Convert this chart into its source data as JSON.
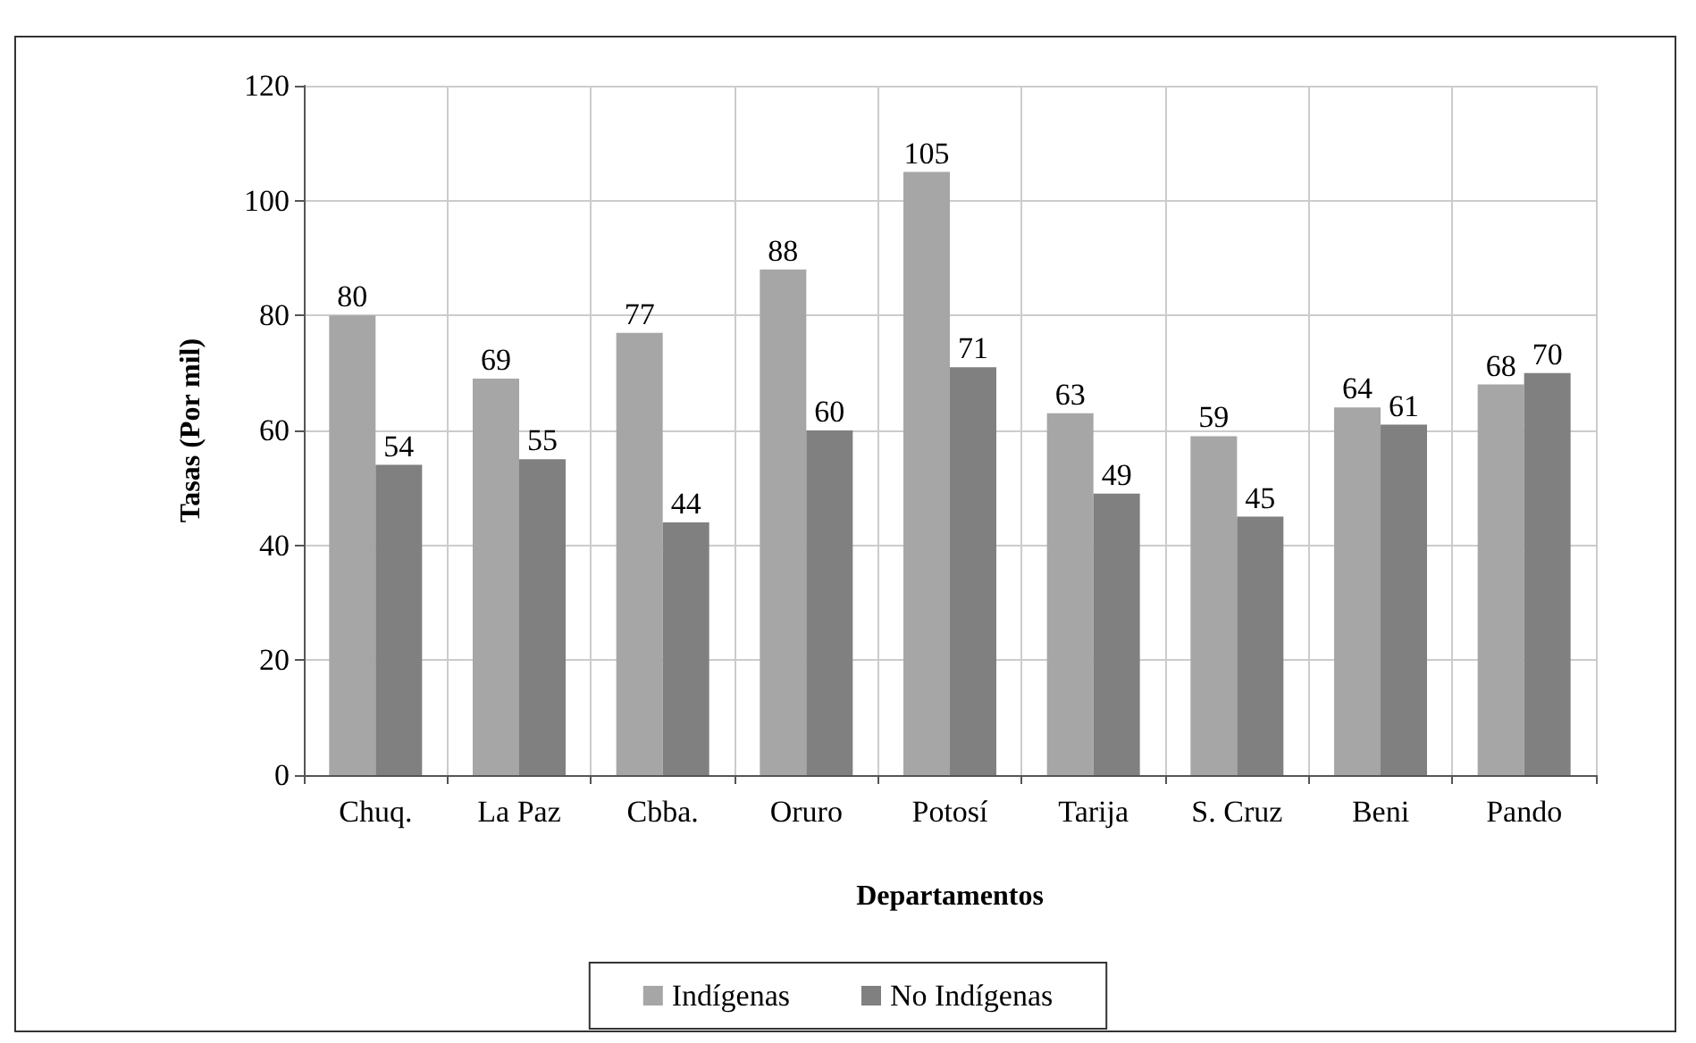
{
  "chart_data": {
    "type": "bar",
    "xlabel": "Departamentos",
    "ylabel": "Tasas (Por mil)",
    "categories": [
      "Chuq.",
      "La Paz",
      "Cbba.",
      "Oruro",
      "Potosí",
      "Tarija",
      "S. Cruz",
      "Beni",
      "Pando"
    ],
    "series": [
      {
        "name": "Indígenas",
        "color": "#a6a6a6",
        "values": [
          80,
          69,
          77,
          88,
          105,
          63,
          59,
          64,
          68
        ]
      },
      {
        "name": "No Indígenas",
        "color": "#808080",
        "values": [
          54,
          55,
          44,
          60,
          71,
          49,
          45,
          61,
          70
        ]
      }
    ],
    "ylim": [
      0,
      120
    ],
    "yticks": [
      0,
      20,
      40,
      60,
      80,
      100,
      120
    ],
    "grid": true,
    "data_labels": true,
    "legend": "bottom"
  }
}
